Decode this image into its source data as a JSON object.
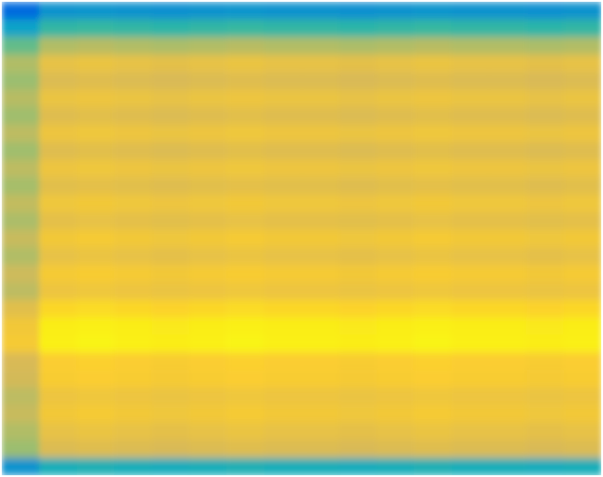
{
  "chart_data": {
    "type": "heatmap",
    "tick_labels": false,
    "zlim": [
      0,
      1
    ],
    "cells": [
      [
        0.15,
        0.3,
        0.31,
        0.3,
        0.29,
        0.3,
        0.31,
        0.3,
        0.3,
        0.29,
        0.3,
        0.31,
        0.3,
        0.3,
        0.29,
        0.3
      ],
      [
        0.36,
        0.48,
        0.49,
        0.48,
        0.47,
        0.48,
        0.49,
        0.48,
        0.48,
        0.47,
        0.48,
        0.49,
        0.48,
        0.48,
        0.47,
        0.48
      ],
      [
        0.56,
        0.68,
        0.69,
        0.68,
        0.67,
        0.68,
        0.69,
        0.68,
        0.68,
        0.67,
        0.68,
        0.69,
        0.68,
        0.68,
        0.67,
        0.68
      ],
      [
        0.68,
        0.8,
        0.81,
        0.8,
        0.79,
        0.8,
        0.81,
        0.8,
        0.8,
        0.79,
        0.8,
        0.81,
        0.8,
        0.8,
        0.79,
        0.8
      ],
      [
        0.64,
        0.76,
        0.77,
        0.76,
        0.75,
        0.76,
        0.77,
        0.76,
        0.76,
        0.75,
        0.76,
        0.77,
        0.76,
        0.76,
        0.75,
        0.76
      ],
      [
        0.69,
        0.81,
        0.82,
        0.81,
        0.8,
        0.81,
        0.82,
        0.81,
        0.81,
        0.8,
        0.81,
        0.82,
        0.81,
        0.81,
        0.8,
        0.81
      ],
      [
        0.65,
        0.77,
        0.78,
        0.77,
        0.76,
        0.77,
        0.78,
        0.77,
        0.77,
        0.76,
        0.77,
        0.78,
        0.77,
        0.77,
        0.76,
        0.77
      ],
      [
        0.7,
        0.82,
        0.83,
        0.82,
        0.81,
        0.82,
        0.83,
        0.82,
        0.82,
        0.81,
        0.82,
        0.83,
        0.82,
        0.82,
        0.81,
        0.82
      ],
      [
        0.65,
        0.77,
        0.78,
        0.77,
        0.76,
        0.77,
        0.78,
        0.77,
        0.77,
        0.76,
        0.77,
        0.78,
        0.77,
        0.77,
        0.76,
        0.77
      ],
      [
        0.7,
        0.82,
        0.83,
        0.82,
        0.81,
        0.82,
        0.83,
        0.82,
        0.82,
        0.81,
        0.82,
        0.83,
        0.82,
        0.82,
        0.81,
        0.82
      ],
      [
        0.66,
        0.78,
        0.79,
        0.78,
        0.77,
        0.78,
        0.79,
        0.78,
        0.78,
        0.77,
        0.78,
        0.79,
        0.78,
        0.78,
        0.77,
        0.78
      ],
      [
        0.71,
        0.83,
        0.84,
        0.83,
        0.82,
        0.83,
        0.84,
        0.83,
        0.83,
        0.82,
        0.83,
        0.84,
        0.83,
        0.83,
        0.82,
        0.83
      ],
      [
        0.67,
        0.79,
        0.8,
        0.79,
        0.78,
        0.79,
        0.8,
        0.79,
        0.79,
        0.78,
        0.79,
        0.8,
        0.79,
        0.79,
        0.78,
        0.79
      ],
      [
        0.72,
        0.84,
        0.85,
        0.84,
        0.83,
        0.84,
        0.85,
        0.84,
        0.84,
        0.83,
        0.84,
        0.85,
        0.84,
        0.84,
        0.83,
        0.84
      ],
      [
        0.68,
        0.8,
        0.81,
        0.8,
        0.79,
        0.8,
        0.81,
        0.8,
        0.8,
        0.79,
        0.8,
        0.81,
        0.8,
        0.8,
        0.79,
        0.8
      ],
      [
        0.73,
        0.85,
        0.86,
        0.85,
        0.84,
        0.85,
        0.86,
        0.85,
        0.85,
        0.84,
        0.85,
        0.86,
        0.85,
        0.85,
        0.84,
        0.85
      ],
      [
        0.7,
        0.82,
        0.83,
        0.82,
        0.81,
        0.82,
        0.83,
        0.82,
        0.82,
        0.81,
        0.82,
        0.83,
        0.82,
        0.82,
        0.81,
        0.82
      ],
      [
        0.78,
        0.9,
        0.91,
        0.9,
        0.89,
        0.9,
        0.91,
        0.9,
        0.9,
        0.89,
        0.9,
        0.91,
        0.9,
        0.9,
        0.89,
        0.9
      ],
      [
        0.84,
        0.96,
        0.97,
        0.96,
        0.95,
        0.96,
        0.97,
        0.96,
        0.96,
        0.95,
        0.96,
        0.97,
        0.96,
        0.96,
        0.95,
        0.96
      ],
      [
        0.85,
        0.97,
        0.98,
        0.97,
        0.96,
        0.97,
        0.98,
        0.97,
        0.97,
        0.96,
        0.97,
        0.98,
        0.97,
        0.97,
        0.96,
        0.97
      ],
      [
        0.75,
        0.87,
        0.88,
        0.87,
        0.86,
        0.87,
        0.88,
        0.87,
        0.87,
        0.86,
        0.87,
        0.88,
        0.87,
        0.87,
        0.86,
        0.87
      ],
      [
        0.74,
        0.86,
        0.87,
        0.86,
        0.85,
        0.86,
        0.87,
        0.86,
        0.86,
        0.85,
        0.86,
        0.87,
        0.86,
        0.86,
        0.85,
        0.86
      ],
      [
        0.7,
        0.82,
        0.83,
        0.82,
        0.81,
        0.82,
        0.83,
        0.82,
        0.82,
        0.81,
        0.82,
        0.83,
        0.82,
        0.82,
        0.81,
        0.82
      ],
      [
        0.72,
        0.84,
        0.85,
        0.84,
        0.83,
        0.84,
        0.85,
        0.84,
        0.84,
        0.83,
        0.84,
        0.85,
        0.84,
        0.84,
        0.83,
        0.84
      ],
      [
        0.68,
        0.8,
        0.81,
        0.8,
        0.79,
        0.8,
        0.81,
        0.8,
        0.8,
        0.79,
        0.8,
        0.81,
        0.8,
        0.8,
        0.79,
        0.8
      ],
      [
        0.64,
        0.76,
        0.77,
        0.76,
        0.75,
        0.76,
        0.77,
        0.76,
        0.76,
        0.75,
        0.76,
        0.77,
        0.76,
        0.76,
        0.75,
        0.76
      ],
      [
        0.3,
        0.42,
        0.43,
        0.42,
        0.41,
        0.42,
        0.43,
        0.42,
        0.42,
        0.41,
        0.42,
        0.43,
        0.42,
        0.42,
        0.41,
        0.42
      ]
    ]
  }
}
